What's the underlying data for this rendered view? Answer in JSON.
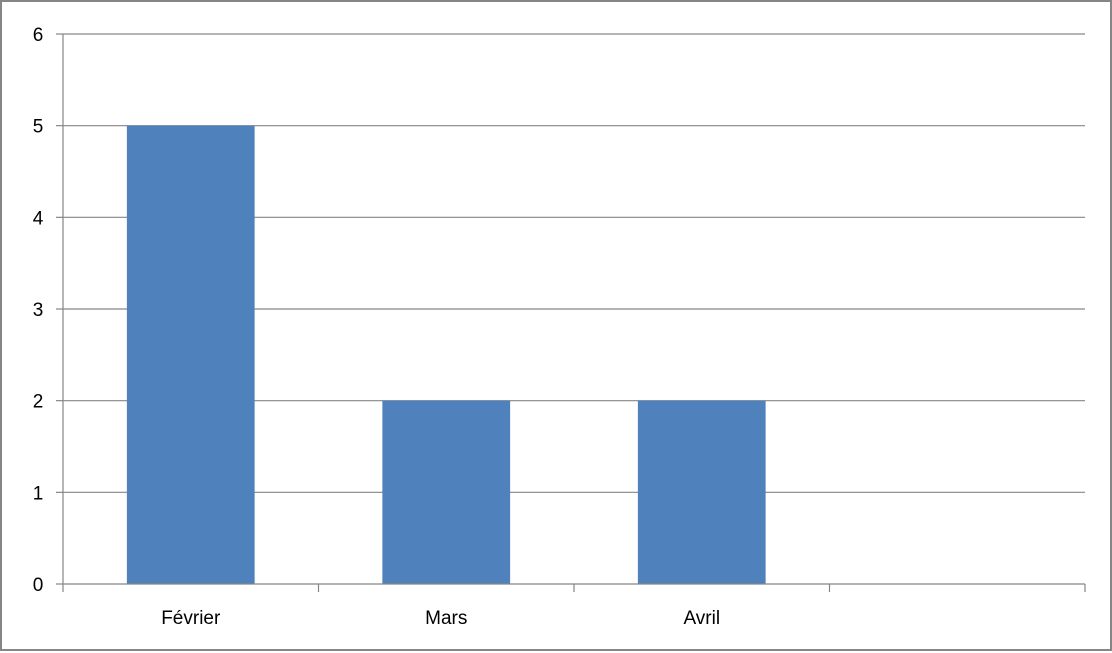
{
  "chart_data": {
    "type": "bar",
    "categories": [
      "Février",
      "Mars",
      "Avril",
      ""
    ],
    "values": [
      5,
      2,
      2,
      null
    ],
    "ylim": [
      0,
      6
    ],
    "yticks": [
      "0",
      "1",
      "2",
      "3",
      "4",
      "5",
      "6"
    ],
    "grid": true,
    "legend": "none",
    "colors": {
      "bar": "#4F81BD",
      "grid": "#868686",
      "axis": "#868686",
      "border": "#868686"
    }
  }
}
